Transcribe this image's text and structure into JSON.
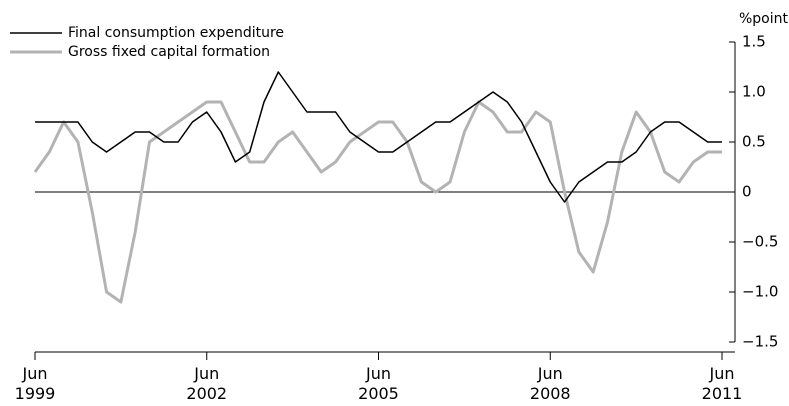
{
  "chart_data": {
    "type": "line",
    "y_label": "%point",
    "categories": [
      "Jun 1999",
      null,
      null,
      null,
      null,
      null,
      null,
      null,
      null,
      null,
      null,
      null,
      "Jun 2002",
      null,
      null,
      null,
      null,
      null,
      null,
      null,
      null,
      null,
      null,
      null,
      "Jun 2005",
      null,
      null,
      null,
      null,
      null,
      null,
      null,
      null,
      null,
      null,
      null,
      "Jun 2008",
      null,
      null,
      null,
      null,
      null,
      null,
      null,
      null,
      null,
      null,
      null,
      "Jun 2011"
    ],
    "series": [
      {
        "name": "Final consumption expenditure",
        "color": "#000000",
        "values": [
          0.7,
          0.7,
          0.7,
          0.7,
          0.5,
          0.4,
          0.5,
          0.6,
          0.6,
          0.5,
          0.5,
          0.7,
          0.8,
          0.6,
          0.3,
          0.4,
          0.9,
          1.2,
          1.0,
          0.8,
          0.8,
          0.8,
          0.6,
          0.5,
          0.4,
          0.4,
          0.5,
          0.6,
          0.7,
          0.7,
          0.8,
          0.9,
          1.0,
          0.9,
          0.7,
          0.4,
          0.1,
          -0.1,
          0.1,
          0.2,
          0.3,
          0.3,
          0.4,
          0.6,
          0.7,
          0.7,
          0.6,
          0.5,
          0.5
        ]
      },
      {
        "name": "Gross fixed capital formation",
        "color": "#b3b3b3",
        "values": [
          0.2,
          0.4,
          0.7,
          0.5,
          -0.2,
          -1.0,
          -1.1,
          -0.4,
          0.5,
          0.6,
          0.7,
          0.8,
          0.9,
          0.9,
          0.6,
          0.3,
          0.3,
          0.5,
          0.6,
          0.4,
          0.2,
          0.3,
          0.5,
          0.6,
          0.7,
          0.7,
          0.5,
          0.1,
          0.0,
          0.1,
          0.6,
          0.9,
          0.8,
          0.6,
          0.6,
          0.8,
          0.7,
          0.0,
          -0.6,
          -0.8,
          -0.3,
          0.4,
          0.8,
          0.6,
          0.2,
          0.1,
          0.3,
          0.4,
          0.4
        ]
      }
    ],
    "ylim": [
      -1.5,
      1.5
    ],
    "yticks": [
      {
        "value": -1.5,
        "label": "−1.5"
      },
      {
        "value": -1.0,
        "label": "−1.0"
      },
      {
        "value": -0.5,
        "label": "−0.5"
      },
      0,
      0.5,
      {
        "value": 1.0,
        "label": "1.0"
      },
      1.5
    ],
    "zero_line": true,
    "legend": "top-left"
  }
}
